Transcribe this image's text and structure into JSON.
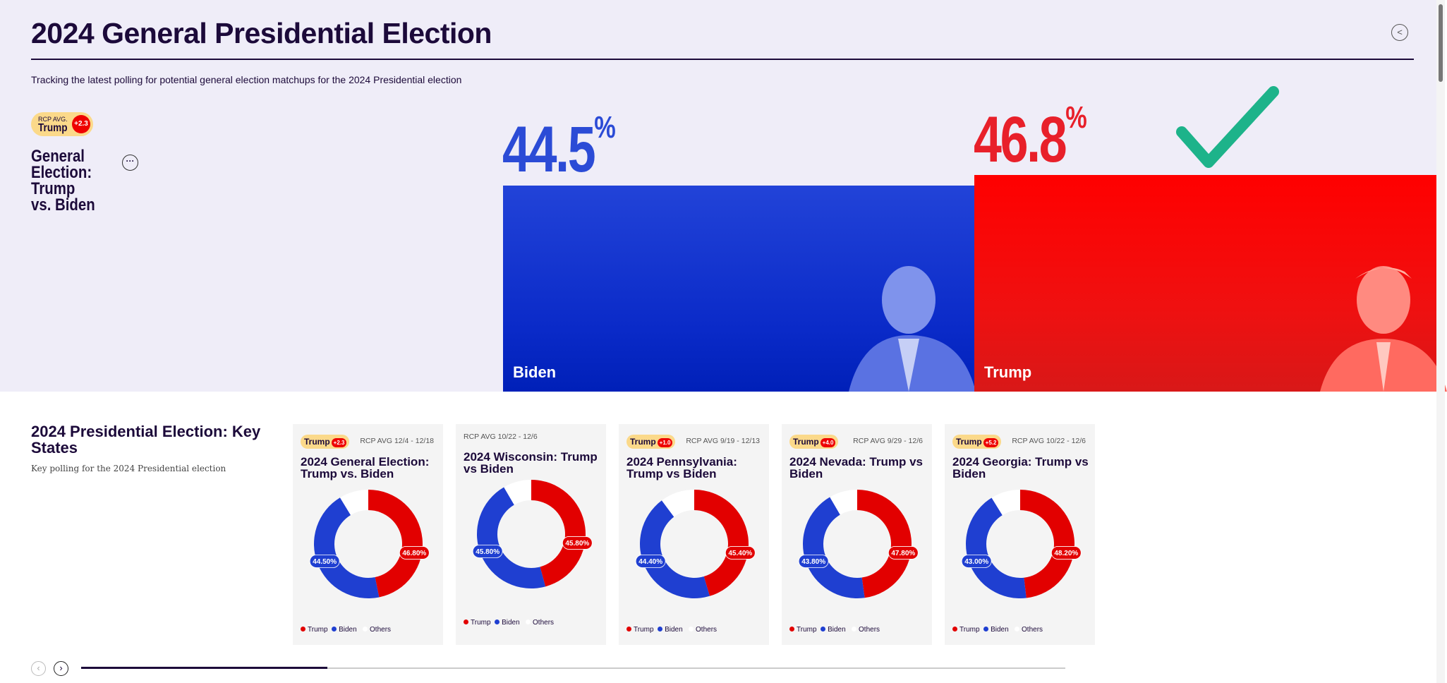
{
  "header": {
    "title": "2024 General Presidential Election",
    "subtitle": "Tracking the latest polling for potential general election matchups for the 2024 Presidential election",
    "share_icon": "share-icon"
  },
  "main_race": {
    "badge": {
      "label": "RCP AVG.",
      "leader": "Trump",
      "spread": "+2.3"
    },
    "title": "General Election: Trump vs. Biden",
    "more_icon": "ellipsis-icon",
    "candidates": [
      {
        "name": "Biden",
        "pct": "44.5",
        "value": 44.5,
        "color": "#1f3fd1",
        "winner": false
      },
      {
        "name": "Trump",
        "pct": "46.8",
        "value": 46.8,
        "color": "#ff0000",
        "winner": true
      }
    ],
    "pct_symbol": "%",
    "check_color": "#1db38a"
  },
  "key_states": {
    "title": "2024 Presidential Election: Key States",
    "subtitle": "Key polling for the 2024 Presidential election",
    "legend": [
      "Trump",
      "Biden",
      "Others"
    ],
    "colors": {
      "trump": "#e20000",
      "biden": "#1f3fd1",
      "others": "#ffffff"
    },
    "cards": [
      {
        "leader": "Trump",
        "spread": "+2.3",
        "avg": "RCP AVG 12/4 - 12/18",
        "title": "2024 General Election: Trump vs. Biden",
        "trump": 46.8,
        "biden": 44.5,
        "trump_label": "46.80%",
        "biden_label": "44.50%"
      },
      {
        "leader": "",
        "spread": "",
        "avg": "RCP AVG 10/22 - 12/6",
        "title": "2024 Wisconsin: Trump vs Biden",
        "trump": 45.8,
        "biden": 45.8,
        "trump_label": "45.80%",
        "biden_label": "45.80%"
      },
      {
        "leader": "Trump",
        "spread": "+1.0",
        "avg": "RCP AVG 9/19 - 12/13",
        "title": "2024 Pennsylvania: Trump vs Biden",
        "trump": 45.4,
        "biden": 44.4,
        "trump_label": "45.40%",
        "biden_label": "44.40%"
      },
      {
        "leader": "Trump",
        "spread": "+4.0",
        "avg": "RCP AVG 9/29 - 12/6",
        "title": "2024 Nevada: Trump vs Biden",
        "trump": 47.8,
        "biden": 43.8,
        "trump_label": "47.80%",
        "biden_label": "43.80%"
      },
      {
        "leader": "Trump",
        "spread": "+5.2",
        "avg": "RCP AVG 10/22 - 12/6",
        "title": "2024 Georgia: Trump vs Biden",
        "trump": 48.2,
        "biden": 43.0,
        "trump_label": "48.20%",
        "biden_label": "43.00%"
      }
    ],
    "carousel": {
      "prev_icon": "chevron-left-icon",
      "next_icon": "chevron-right-icon",
      "progress": 0.25
    }
  }
}
